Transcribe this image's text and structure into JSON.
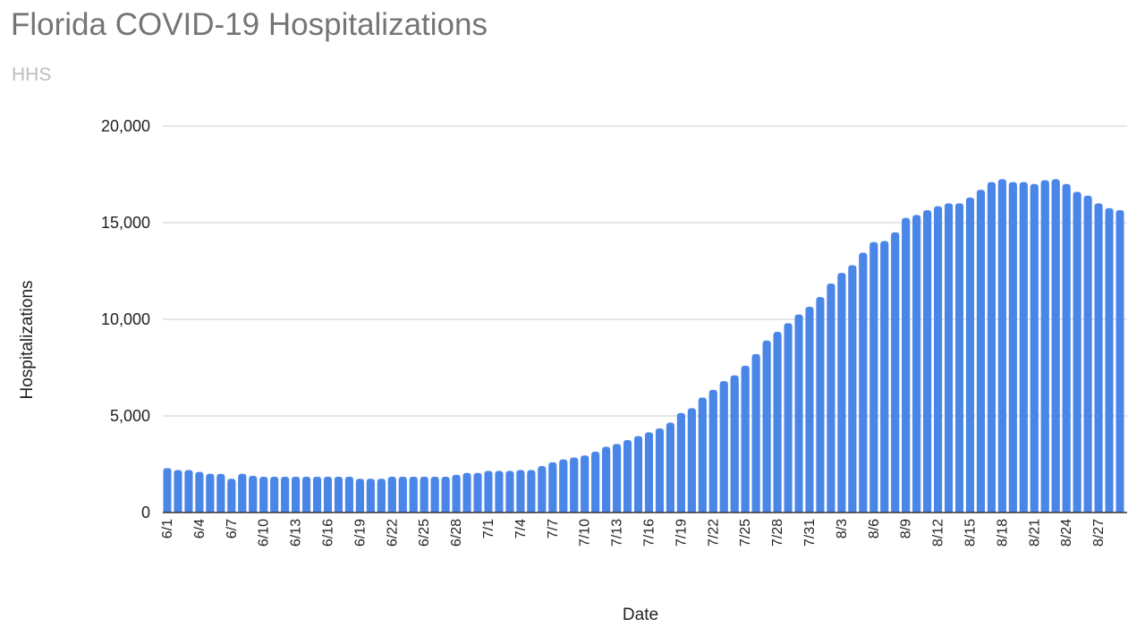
{
  "chart_data": {
    "type": "bar",
    "title": "Florida COVID-19 Hospitalizations",
    "subtitle": "HHS",
    "xlabel": "Date",
    "ylabel": "Hospitalizations",
    "ylim": [
      0,
      20000
    ],
    "yticks": [
      0,
      5000,
      10000,
      15000,
      20000
    ],
    "ytick_labels": [
      "0",
      "5,000",
      "10,000",
      "15,000",
      "20,000"
    ],
    "grid": true,
    "legend": "none",
    "bar_color": "#4a86e8",
    "categories": [
      "6/1",
      "6/2",
      "6/3",
      "6/4",
      "6/5",
      "6/6",
      "6/7",
      "6/8",
      "6/9",
      "6/10",
      "6/11",
      "6/12",
      "6/13",
      "6/14",
      "6/15",
      "6/16",
      "6/17",
      "6/18",
      "6/19",
      "6/20",
      "6/21",
      "6/22",
      "6/23",
      "6/24",
      "6/25",
      "6/26",
      "6/27",
      "6/28",
      "6/29",
      "6/30",
      "7/1",
      "7/2",
      "7/3",
      "7/4",
      "7/5",
      "7/6",
      "7/7",
      "7/8",
      "7/9",
      "7/10",
      "7/11",
      "7/12",
      "7/13",
      "7/14",
      "7/15",
      "7/16",
      "7/17",
      "7/18",
      "7/19",
      "7/20",
      "7/21",
      "7/22",
      "7/23",
      "7/24",
      "7/25",
      "7/26",
      "7/27",
      "7/28",
      "7/29",
      "7/30",
      "7/31",
      "8/1",
      "8/2",
      "8/3",
      "8/4",
      "8/5",
      "8/6",
      "8/7",
      "8/8",
      "8/9",
      "8/10",
      "8/11",
      "8/12",
      "8/13",
      "8/14",
      "8/15",
      "8/16",
      "8/17",
      "8/18",
      "8/19",
      "8/20",
      "8/21",
      "8/22",
      "8/23",
      "8/24",
      "8/25",
      "8/26",
      "8/27",
      "8/28",
      "8/29"
    ],
    "values": [
      2300,
      2200,
      2200,
      2100,
      2000,
      2000,
      1750,
      2000,
      1900,
      1850,
      1850,
      1850,
      1850,
      1850,
      1850,
      1850,
      1850,
      1850,
      1750,
      1750,
      1750,
      1850,
      1850,
      1850,
      1850,
      1850,
      1850,
      1950,
      2050,
      2050,
      2150,
      2150,
      2150,
      2200,
      2200,
      2400,
      2600,
      2750,
      2850,
      2950,
      3150,
      3400,
      3550,
      3750,
      3950,
      4150,
      4350,
      4650,
      5150,
      5400,
      5950,
      6350,
      6800,
      7100,
      7600,
      8200,
      8900,
      9350,
      9800,
      10250,
      10650,
      11150,
      11850,
      12400,
      12800,
      13450,
      14000,
      14050,
      14500,
      15250,
      15400,
      15650,
      15850,
      16000,
      16000,
      16300,
      16700,
      17100,
      17250,
      17100,
      17100,
      17000,
      17200,
      17250,
      17000,
      16600,
      16400,
      16000,
      15750,
      15650
    ],
    "xtick_labels": [
      "6/1",
      "6/4",
      "6/7",
      "6/10",
      "6/13",
      "6/16",
      "6/19",
      "6/22",
      "6/25",
      "6/28",
      "7/1",
      "7/4",
      "7/7",
      "7/10",
      "7/13",
      "7/16",
      "7/19",
      "7/22",
      "7/25",
      "7/28",
      "7/31",
      "8/3",
      "8/6",
      "8/9",
      "8/12",
      "8/15",
      "8/18",
      "8/21",
      "8/24",
      "8/27"
    ]
  }
}
